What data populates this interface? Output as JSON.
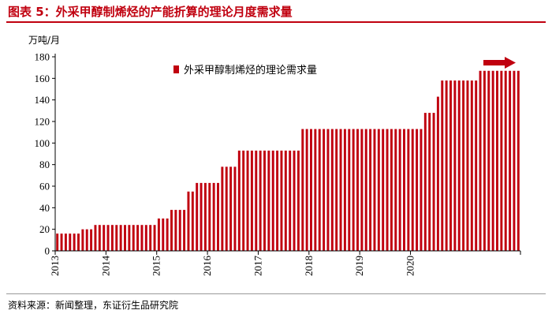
{
  "figure": {
    "title": "图表 5：外采甲醇制烯烃的产能折算的理论月度需求量",
    "source": "资料来源：新闻整理，东证衍生品研究院"
  },
  "colors": {
    "bar": "#c0000f",
    "title": "#c0000f",
    "arrow": "#c0000f"
  },
  "chart_data": {
    "type": "bar",
    "ylabel": "万吨/月",
    "ylim": [
      0,
      180
    ],
    "yticks": [
      0,
      20,
      40,
      60,
      80,
      100,
      120,
      140,
      160,
      180
    ],
    "grid": false,
    "legend": {
      "position": "top-center",
      "entries": [
        "外采甲醇制烯烃的理论需求量"
      ]
    },
    "annotations": [
      {
        "type": "arrow",
        "direction": "right",
        "position": "above last bars"
      }
    ],
    "xtick_labels": [
      "2013",
      "2014",
      "2015",
      "2016",
      "2017",
      "2018",
      "2019",
      "2020"
    ],
    "series": [
      {
        "name": "外采甲醇制烯烃的理论需求量",
        "values": [
          16,
          16,
          16,
          16,
          16,
          16,
          20,
          20,
          20,
          24,
          24,
          24,
          24,
          24,
          24,
          24,
          24,
          24,
          24,
          24,
          24,
          24,
          24,
          24,
          30,
          30,
          30,
          38,
          38,
          38,
          38,
          55,
          55,
          63,
          63,
          63,
          63,
          63,
          63,
          78,
          78,
          78,
          78,
          93,
          93,
          93,
          93,
          93,
          93,
          93,
          93,
          93,
          93,
          93,
          93,
          93,
          93,
          93,
          113,
          113,
          113,
          113,
          113,
          113,
          113,
          113,
          113,
          113,
          113,
          113,
          113,
          113,
          113,
          113,
          113,
          113,
          113,
          113,
          113,
          113,
          113,
          113,
          113,
          113,
          113,
          113,
          113,
          128,
          128,
          128,
          143,
          158,
          158,
          158,
          158,
          158,
          158,
          158,
          158,
          158,
          167,
          167,
          167,
          167,
          167,
          167,
          167,
          167,
          167,
          167
        ]
      }
    ]
  }
}
